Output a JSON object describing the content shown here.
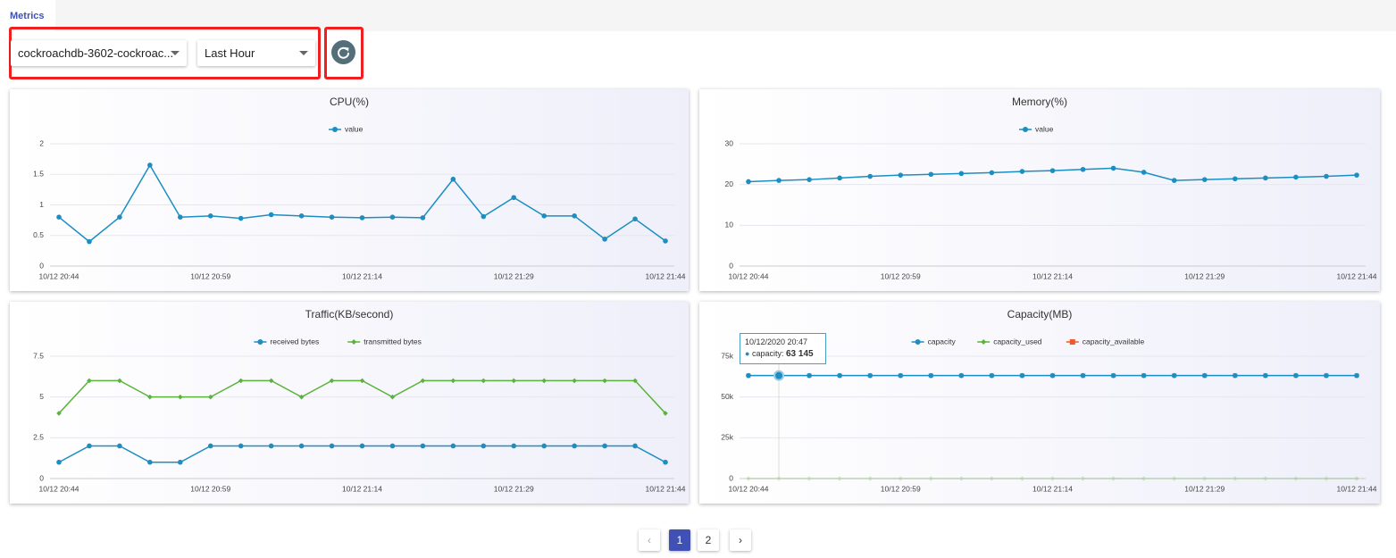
{
  "tab": "Metrics",
  "controls": {
    "instance": "cockroachdb-3602-cockroac...",
    "range": "Last Hour"
  },
  "pagination": [
    "1",
    "2"
  ],
  "chart_data": [
    {
      "type": "line",
      "title": "CPU(%)",
      "categories": [
        "10/12 20:44",
        null,
        null,
        null,
        null,
        "10/12 20:59",
        null,
        null,
        null,
        null,
        "10/12 21:14",
        null,
        null,
        null,
        null,
        "10/12 21:29",
        null,
        null,
        null,
        null,
        "10/12 21:44"
      ],
      "series": [
        {
          "name": "value",
          "color": "#1b8ec2",
          "values": [
            0.8,
            0.4,
            0.8,
            1.65,
            0.8,
            0.82,
            0.78,
            0.84,
            0.82,
            0.8,
            0.79,
            0.8,
            0.79,
            1.42,
            0.81,
            1.12,
            0.82,
            0.82,
            0.44,
            0.77,
            0.41
          ]
        }
      ],
      "ylim": [
        0,
        2
      ],
      "yticks": [
        0,
        0.5,
        1,
        1.5,
        2
      ],
      "grid": true
    },
    {
      "type": "line",
      "title": "Memory(%)",
      "categories": [
        "10/12 20:44",
        null,
        null,
        null,
        null,
        "10/12 20:59",
        null,
        null,
        null,
        null,
        "10/12 21:14",
        null,
        null,
        null,
        null,
        "10/12 21:29",
        null,
        null,
        null,
        null,
        "10/12 21:44"
      ],
      "series": [
        {
          "name": "value",
          "color": "#1b8ec2",
          "values": [
            20.7,
            21,
            21.2,
            21.6,
            22,
            22.3,
            22.5,
            22.7,
            22.9,
            23.2,
            23.4,
            23.7,
            24,
            23,
            21,
            21.2,
            21.4,
            21.6,
            21.8,
            22,
            22.3
          ]
        }
      ],
      "ylim": [
        0,
        30
      ],
      "yticks": [
        0,
        10,
        20,
        30
      ],
      "grid": true
    },
    {
      "type": "line",
      "title": "Traffic(KB/second)",
      "categories": [
        "10/12 20:44",
        null,
        null,
        null,
        null,
        "10/12 20:59",
        null,
        null,
        null,
        null,
        "10/12 21:14",
        null,
        null,
        null,
        null,
        "10/12 21:29",
        null,
        null,
        null,
        null,
        "10/12 21:44"
      ],
      "series": [
        {
          "name": "received bytes",
          "color": "#1b8ec2",
          "values": [
            1,
            2,
            2,
            1,
            1,
            2,
            2,
            2,
            2,
            2,
            2,
            2,
            2,
            2,
            2,
            2,
            2,
            2,
            2,
            2,
            1
          ]
        },
        {
          "name": "transmitted bytes",
          "color": "#5ab43c",
          "values": [
            4,
            6,
            6,
            5,
            5,
            5,
            6,
            6,
            5,
            6,
            6,
            5,
            6,
            6,
            6,
            6,
            6,
            6,
            6,
            6,
            4
          ]
        }
      ],
      "ylim": [
        0,
        7.5
      ],
      "yticks": [
        0,
        2.5,
        5,
        7.5
      ],
      "grid": true
    },
    {
      "type": "line",
      "title": "Capacity(MB)",
      "categories": [
        "10/12 20:44",
        null,
        null,
        null,
        null,
        "10/12 20:59",
        null,
        null,
        null,
        null,
        "10/12 21:14",
        null,
        null,
        null,
        null,
        "10/12 21:29",
        null,
        null,
        null,
        null,
        "10/12 21:44"
      ],
      "series": [
        {
          "name": "capacity",
          "color": "#1b8ec2",
          "values": [
            63145,
            63145,
            63145,
            63145,
            63145,
            63145,
            63145,
            63145,
            63145,
            63145,
            63145,
            63145,
            63145,
            63145,
            63145,
            63145,
            63145,
            63145,
            63145,
            63145,
            63145
          ]
        },
        {
          "name": "capacity_used",
          "color": "#5ab43c",
          "values": [
            0,
            0,
            0,
            0,
            0,
            0,
            0,
            0,
            0,
            0,
            0,
            0,
            0,
            0,
            0,
            0,
            0,
            0,
            0,
            0,
            0
          ]
        },
        {
          "name": "capacity_available",
          "color": "#f05a28",
          "values": [
            63145,
            63145,
            63145,
            63145,
            63145,
            63145,
            63145,
            63145,
            63145,
            63145,
            63145,
            63145,
            63145,
            63145,
            63145,
            63145,
            63145,
            63145,
            63145,
            63145,
            63145
          ]
        }
      ],
      "ylim": [
        0,
        75000
      ],
      "yticks": [
        0,
        {
          "value": 25000,
          "label": "25k"
        },
        {
          "value": 50000,
          "label": "50k"
        },
        {
          "value": 75000,
          "label": "75k"
        }
      ],
      "grid": true,
      "tooltip": {
        "title": "10/12/2020 20:47",
        "label": "capacity:",
        "value_label": "63 145"
      }
    }
  ]
}
